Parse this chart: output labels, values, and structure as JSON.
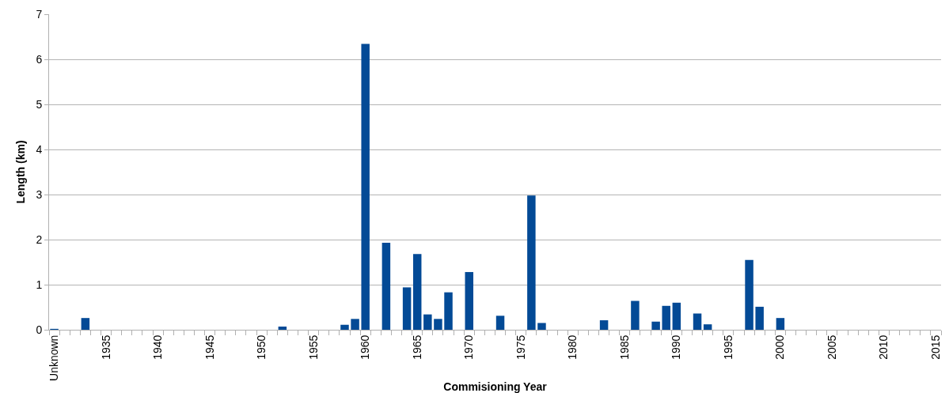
{
  "chart_data": {
    "type": "bar",
    "xlabel": "Commisioning Year",
    "ylabel": "Length (km)",
    "categories": [
      "Unknown",
      null,
      null,
      null,
      null,
      "1935",
      null,
      null,
      null,
      null,
      "1940",
      null,
      null,
      null,
      null,
      "1945",
      null,
      null,
      null,
      null,
      "1950",
      null,
      null,
      null,
      null,
      "1955",
      null,
      null,
      null,
      null,
      "1960",
      null,
      null,
      null,
      null,
      "1965",
      null,
      null,
      null,
      null,
      "1970",
      null,
      null,
      null,
      null,
      "1975",
      null,
      null,
      null,
      null,
      "1980",
      null,
      null,
      null,
      null,
      "1985",
      null,
      null,
      null,
      null,
      "1990",
      null,
      null,
      null,
      null,
      "1995",
      null,
      null,
      null,
      null,
      "2000",
      null,
      null,
      null,
      null,
      "2005",
      null,
      null,
      null,
      null,
      "2010",
      null,
      null,
      null,
      null,
      "2015"
    ],
    "values": [
      0.02,
      0,
      0,
      0.26,
      0,
      0,
      0,
      0,
      0,
      0,
      0,
      0,
      0,
      0,
      0,
      0,
      0,
      0,
      0,
      0,
      0,
      0,
      0.07,
      0,
      0,
      0,
      0,
      0,
      0.11,
      0.24,
      6.34,
      0,
      1.93,
      0,
      0.94,
      1.68,
      0.34,
      0.24,
      0.83,
      0,
      1.28,
      0,
      0,
      0.31,
      0,
      0,
      2.98,
      0.15,
      0,
      0,
      0,
      0,
      0,
      0.21,
      0,
      0,
      0.64,
      0,
      0.18,
      0.53,
      0.6,
      0,
      0.36,
      0.12,
      0,
      0,
      0,
      1.55,
      0.51,
      0,
      0.26,
      0,
      0,
      0,
      0,
      0,
      0,
      0,
      0,
      0,
      0,
      0,
      0,
      0,
      0,
      0
    ],
    "color": "#034a96",
    "ylim": [
      0,
      7
    ],
    "yticks": [
      0,
      1,
      2,
      3,
      4,
      5,
      6,
      7
    ],
    "grid": "y"
  }
}
